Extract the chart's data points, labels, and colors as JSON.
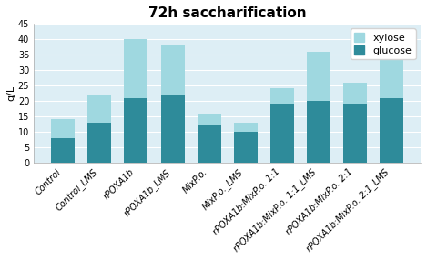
{
  "categories": [
    "Control",
    "Control_LMS",
    "rPOXA1b",
    "rPOXA1b_LMS",
    "MixP.o.",
    "MixP.o._LMS",
    "rPOXA1b:MixP.o. 1:1",
    "rPOXA1b:MixP.o. 1:1_LMS",
    "rPOXA1b:MixP.o. 2:1",
    "rPOXA1b:MixP.o. 2:1_LMS"
  ],
  "glucose": [
    8.0,
    13.0,
    21.0,
    22.0,
    12.0,
    10.0,
    19.0,
    20.0,
    19.0,
    21.0
  ],
  "xylose": [
    6.0,
    9.0,
    19.0,
    16.0,
    4.0,
    3.0,
    5.0,
    16.0,
    7.0,
    17.0
  ],
  "glucose_color": "#2e8b9a",
  "xylose_color": "#9fd8e0",
  "title": "72h saccharification",
  "ylabel": "g/L",
  "ylim": [
    0,
    45
  ],
  "yticks": [
    0,
    5,
    10,
    15,
    20,
    25,
    30,
    35,
    40,
    45
  ],
  "figure_bg": "#ffffff",
  "plot_bg": "#ddeef5",
  "grid_color": "#ffffff",
  "title_fontsize": 11,
  "axis_fontsize": 8,
  "tick_fontsize": 7,
  "legend_fontsize": 8
}
